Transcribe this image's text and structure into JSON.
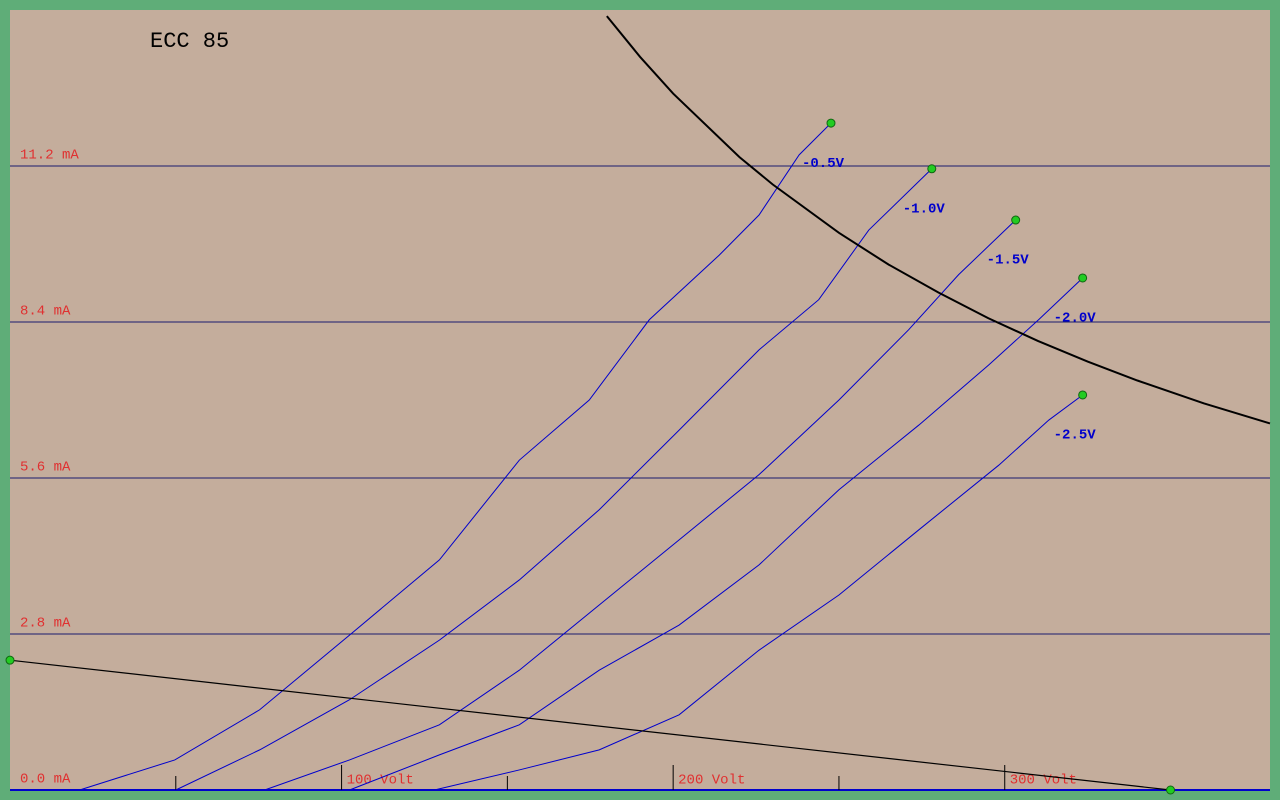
{
  "chart_data": {
    "type": "line",
    "title": "ECC 85",
    "xlim": [
      0,
      380
    ],
    "ylim": [
      0,
      14
    ],
    "xticks": [
      {
        "value": 100,
        "label": "100 Volt"
      },
      {
        "value": 200,
        "label": "200 Volt"
      },
      {
        "value": 300,
        "label": "300 Volt"
      }
    ],
    "xminorticks": [
      50,
      150,
      250
    ],
    "yticks": [
      {
        "value": 0,
        "label": "0.0 mA"
      },
      {
        "value": 2.8,
        "label": "2.8 mA"
      },
      {
        "value": 5.6,
        "label": "5.6 mA"
      },
      {
        "value": 8.4,
        "label": "8.4 mA"
      },
      {
        "value": 11.2,
        "label": "11.2 mA"
      }
    ],
    "grid": true,
    "marker_color": "#22cc22",
    "series": [
      {
        "name": "-0.5V",
        "color": "#0000cc",
        "markers": "last",
        "x": [
          21,
          49.7,
          75.3,
          102.4,
          129.5,
          153.6,
          174.7,
          192.8,
          213.9,
          225.9,
          238,
          247.6
        ],
        "values": [
          0,
          0.54,
          1.44,
          2.78,
          4.13,
          5.92,
          7.0,
          8.44,
          9.6,
          10.32,
          11.4,
          11.97
        ]
      },
      {
        "name": "-1.0V",
        "color": "#0000cc",
        "markers": "last",
        "x": [
          50,
          75.3,
          102.4,
          129.5,
          153.6,
          177.7,
          201.8,
          225.9,
          243.9,
          259,
          278
        ],
        "values": [
          0,
          0.72,
          1.62,
          2.69,
          3.77,
          5.03,
          6.46,
          7.9,
          8.8,
          10.05,
          11.15
        ]
      },
      {
        "name": "-1.5V",
        "color": "#0000cc",
        "markers": "last",
        "x": [
          76.8,
          102.4,
          129.5,
          153.6,
          177.7,
          201.8,
          225.9,
          250,
          271,
          286.1,
          303.3
        ],
        "values": [
          0,
          0.54,
          1.17,
          2.15,
          3.32,
          4.49,
          5.66,
          7.0,
          8.26,
          9.25,
          10.23
        ]
      },
      {
        "name": "-2.0V",
        "color": "#0000cc",
        "markers": "last",
        "x": [
          102.4,
          129.5,
          153.6,
          177.7,
          201.8,
          225.9,
          250,
          274.1,
          295.2,
          310.2,
          323.5
        ],
        "values": [
          0,
          0.63,
          1.17,
          2.15,
          2.96,
          4.04,
          5.39,
          6.55,
          7.63,
          8.44,
          9.19
        ]
      },
      {
        "name": "-2.5V",
        "color": "#0000cc",
        "markers": "last",
        "x": [
          128,
          153.6,
          177.7,
          201.8,
          225.9,
          250,
          274.1,
          298.2,
          313.3,
          323.5
        ],
        "values": [
          0,
          0.36,
          0.72,
          1.35,
          2.51,
          3.5,
          4.67,
          5.83,
          6.64,
          7.09
        ]
      },
      {
        "color": "#000000",
        "markers": "none",
        "x": [
          180,
          190,
          200,
          220,
          230,
          250,
          265,
          280,
          295,
          310,
          325,
          340,
          360,
          380
        ],
        "values": [
          13.89,
          13.16,
          12.5,
          11.36,
          10.87,
          10.0,
          9.43,
          8.93,
          8.47,
          8.06,
          7.69,
          7.35,
          6.94,
          6.58
        ]
      },
      {
        "color": "#000000",
        "markers": "both",
        "x": [
          0,
          350
        ],
        "values": [
          2.33,
          0
        ]
      }
    ]
  }
}
